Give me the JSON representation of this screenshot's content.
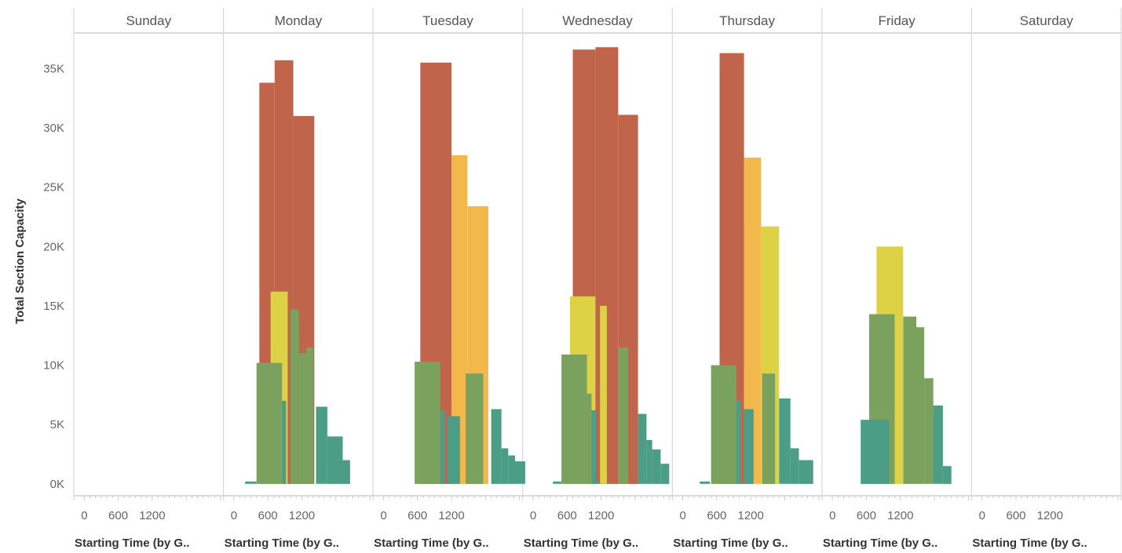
{
  "chart_data": {
    "type": "bar",
    "ylabel": "Total Section Capacity",
    "y_ticks": [
      "0K",
      "5K",
      "10K",
      "15K",
      "20K",
      "25K",
      "30K",
      "35K"
    ],
    "ylim": [
      -1000,
      38000
    ],
    "x_ticks": [
      "0",
      "600",
      "1200"
    ],
    "x_axis_label": "Starting Time (by G..",
    "xlim": [
      -100,
      2400
    ],
    "colors": {
      "red": "#c0654b",
      "orange": "#f2b84b",
      "yellow": "#ddd245",
      "green": "#7aa25e",
      "teal": "#4b9e85"
    },
    "panels": [
      {
        "day": "Sunday",
        "bars": []
      },
      {
        "day": "Monday",
        "bars": [
          {
            "x0": 450,
            "x1": 720,
            "value": 33800,
            "color": "red"
          },
          {
            "x0": 720,
            "x1": 1050,
            "value": 35700,
            "color": "red"
          },
          {
            "x0": 1050,
            "x1": 1420,
            "value": 31000,
            "color": "red"
          },
          {
            "x0": 650,
            "x1": 950,
            "value": 16200,
            "color": "yellow"
          },
          {
            "x0": 400,
            "x1": 850,
            "value": 10200,
            "color": "green"
          },
          {
            "x0": 850,
            "x1": 920,
            "value": 7000,
            "color": "teal"
          },
          {
            "x0": 1000,
            "x1": 1150,
            "value": 14700,
            "color": "green"
          },
          {
            "x0": 1150,
            "x1": 1280,
            "value": 11000,
            "color": "green"
          },
          {
            "x0": 1280,
            "x1": 1400,
            "value": 11500,
            "color": "green"
          },
          {
            "x0": 1450,
            "x1": 1650,
            "value": 6500,
            "color": "teal"
          },
          {
            "x0": 1650,
            "x1": 1920,
            "value": 4000,
            "color": "teal"
          },
          {
            "x0": 1920,
            "x1": 2050,
            "value": 2000,
            "color": "teal"
          },
          {
            "x0": 200,
            "x1": 400,
            "value": 200,
            "color": "teal"
          }
        ]
      },
      {
        "day": "Tuesday",
        "bars": [
          {
            "x0": 650,
            "x1": 1200,
            "value": 35500,
            "color": "red"
          },
          {
            "x0": 1200,
            "x1": 1480,
            "value": 27700,
            "color": "orange"
          },
          {
            "x0": 1480,
            "x1": 1850,
            "value": 23400,
            "color": "orange"
          },
          {
            "x0": 550,
            "x1": 1000,
            "value": 10300,
            "color": "green"
          },
          {
            "x0": 1000,
            "x1": 1080,
            "value": 6200,
            "color": "teal"
          },
          {
            "x0": 1130,
            "x1": 1350,
            "value": 5700,
            "color": "teal"
          },
          {
            "x0": 1450,
            "x1": 1760,
            "value": 9300,
            "color": "green"
          },
          {
            "x0": 1900,
            "x1": 2080,
            "value": 6300,
            "color": "teal"
          },
          {
            "x0": 2080,
            "x1": 2200,
            "value": 3000,
            "color": "teal"
          },
          {
            "x0": 2200,
            "x1": 2320,
            "value": 2400,
            "color": "teal"
          },
          {
            "x0": 2320,
            "x1": 2500,
            "value": 1900,
            "color": "teal"
          }
        ]
      },
      {
        "day": "Wednesday",
        "bars": [
          {
            "x0": 700,
            "x1": 1100,
            "value": 36600,
            "color": "red"
          },
          {
            "x0": 1100,
            "x1": 1500,
            "value": 36800,
            "color": "red"
          },
          {
            "x0": 1500,
            "x1": 1850,
            "value": 31100,
            "color": "red"
          },
          {
            "x0": 650,
            "x1": 1100,
            "value": 15800,
            "color": "yellow"
          },
          {
            "x0": 1180,
            "x1": 1300,
            "value": 15000,
            "color": "yellow"
          },
          {
            "x0": 500,
            "x1": 950,
            "value": 10900,
            "color": "green"
          },
          {
            "x0": 950,
            "x1": 1030,
            "value": 7600,
            "color": "green"
          },
          {
            "x0": 1500,
            "x1": 1680,
            "value": 11500,
            "color": "green"
          },
          {
            "x0": 1850,
            "x1": 2000,
            "value": 5900,
            "color": "teal"
          },
          {
            "x0": 2000,
            "x1": 2100,
            "value": 3700,
            "color": "teal"
          },
          {
            "x0": 2100,
            "x1": 2250,
            "value": 2900,
            "color": "teal"
          },
          {
            "x0": 2250,
            "x1": 2400,
            "value": 1700,
            "color": "teal"
          },
          {
            "x0": 1030,
            "x1": 1110,
            "value": 6200,
            "color": "teal"
          },
          {
            "x0": 1110,
            "x1": 1180,
            "value": 200,
            "color": "teal"
          },
          {
            "x0": 350,
            "x1": 500,
            "value": 200,
            "color": "teal"
          }
        ]
      },
      {
        "day": "Thursday",
        "bars": [
          {
            "x0": 650,
            "x1": 1080,
            "value": 36300,
            "color": "red"
          },
          {
            "x0": 1080,
            "x1": 1380,
            "value": 27500,
            "color": "orange"
          },
          {
            "x0": 1380,
            "x1": 1700,
            "value": 21700,
            "color": "yellow"
          },
          {
            "x0": 500,
            "x1": 950,
            "value": 10000,
            "color": "green"
          },
          {
            "x0": 950,
            "x1": 1030,
            "value": 7000,
            "color": "teal"
          },
          {
            "x0": 1080,
            "x1": 1250,
            "value": 6300,
            "color": "teal"
          },
          {
            "x0": 1400,
            "x1": 1630,
            "value": 9300,
            "color": "green"
          },
          {
            "x0": 1700,
            "x1": 1900,
            "value": 7200,
            "color": "teal"
          },
          {
            "x0": 1900,
            "x1": 2050,
            "value": 3000,
            "color": "teal"
          },
          {
            "x0": 2050,
            "x1": 2300,
            "value": 2000,
            "color": "teal"
          },
          {
            "x0": 300,
            "x1": 480,
            "value": 200,
            "color": "teal"
          }
        ]
      },
      {
        "day": "Friday",
        "bars": [
          {
            "x0": 780,
            "x1": 1250,
            "value": 20000,
            "color": "yellow"
          },
          {
            "x0": 650,
            "x1": 1100,
            "value": 14300,
            "color": "green"
          },
          {
            "x0": 1250,
            "x1": 1480,
            "value": 14100,
            "color": "green"
          },
          {
            "x0": 1480,
            "x1": 1620,
            "value": 13200,
            "color": "green"
          },
          {
            "x0": 1620,
            "x1": 1780,
            "value": 8900,
            "color": "green"
          },
          {
            "x0": 1780,
            "x1": 1950,
            "value": 6600,
            "color": "teal"
          },
          {
            "x0": 1950,
            "x1": 2100,
            "value": 1500,
            "color": "teal"
          },
          {
            "x0": 500,
            "x1": 1000,
            "value": 5400,
            "color": "teal"
          }
        ]
      },
      {
        "day": "Saturday",
        "bars": []
      }
    ]
  }
}
